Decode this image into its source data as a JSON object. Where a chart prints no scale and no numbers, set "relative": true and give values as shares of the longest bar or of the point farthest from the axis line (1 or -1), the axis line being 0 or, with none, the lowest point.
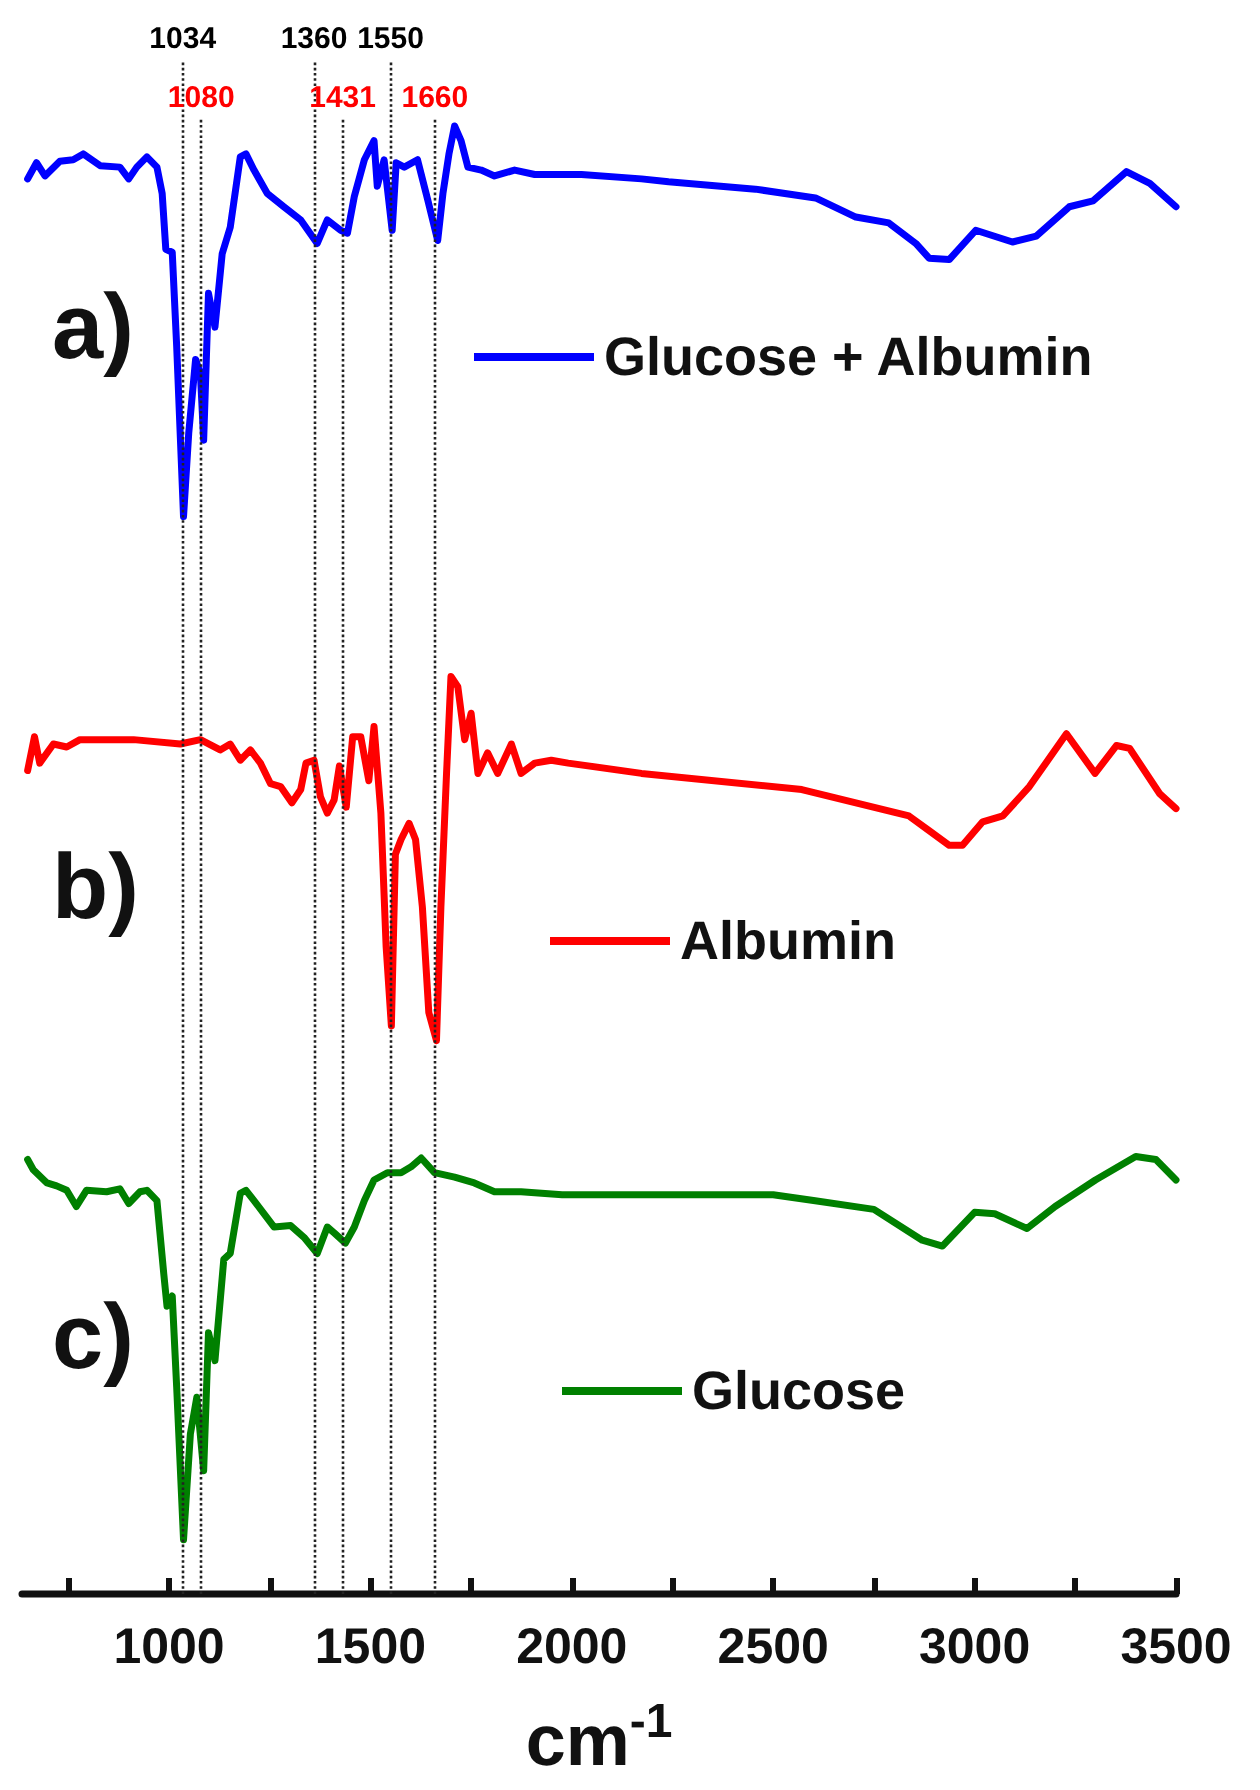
{
  "chart_data": {
    "type": "line",
    "relative": true,
    "xlabel": "cm$^{-1}$",
    "xlim": [
      635,
      3500
    ],
    "xticks": [
      {
        "value": 750,
        "label": null
      },
      1000,
      {
        "value": 1250,
        "label": null
      },
      1500,
      {
        "value": 1750,
        "label": null
      },
      2000,
      {
        "value": 2250,
        "label": null
      },
      2500,
      {
        "value": 2750,
        "label": null
      },
      3000,
      {
        "value": 3250,
        "label": null
      },
      3500
    ],
    "grid": false,
    "legend": "right",
    "marker": "none",
    "line_style": "solid",
    "annotations": [
      "a)",
      "b)",
      "c)"
    ],
    "ref_lines": [
      {
        "axis": "x",
        "value": 1034,
        "label": "1034",
        "color": "#222222",
        "line_style": "dotted"
      },
      {
        "axis": "x",
        "value": 1080,
        "label": "1080",
        "color": "#222222",
        "line_style": "dotted"
      },
      {
        "axis": "x",
        "value": 1360,
        "label": "1360",
        "color": "#222222",
        "line_style": "dotted"
      },
      {
        "axis": "x",
        "value": 1431,
        "label": "1431",
        "color": "#222222",
        "line_style": "dotted"
      },
      {
        "axis": "x",
        "value": 1550,
        "label": "1550",
        "color": "#222222",
        "line_style": "dotted"
      },
      {
        "axis": "x",
        "value": 1660,
        "label": "1660",
        "color": "#222222",
        "line_style": "dotted"
      }
    ],
    "series": [
      {
        "name": "Glucose + Albumin",
        "color": "#0000ff",
        "x": [
          649,
          671,
          692,
          729,
          762,
          787,
          829,
          878,
          900,
          920,
          945,
          970,
          983,
          992,
          1008,
          1019,
          1036,
          1049,
          1066,
          1078,
          1086,
          1098,
          1114,
          1132,
          1152,
          1177,
          1191,
          1211,
          1244,
          1285,
          1327,
          1368,
          1393,
          1426,
          1443,
          1460,
          1485,
          1509,
          1517,
          1534,
          1554,
          1564,
          1584,
          1617,
          1642,
          1667,
          1680,
          1695,
          1709,
          1725,
          1742,
          1775,
          1808,
          1858,
          1908,
          1958,
          2024,
          2173,
          2240,
          2456,
          2605,
          2705,
          2787,
          2854,
          2887,
          2937,
          3003,
          3094,
          3153,
          3235,
          3294,
          3377,
          3435,
          3500
        ],
        "values": [
          0.964,
          0.975,
          0.966,
          0.976,
          0.977,
          0.981,
          0.973,
          0.972,
          0.964,
          0.972,
          0.979,
          0.972,
          0.954,
          0.916,
          0.914,
          0.85,
          0.734,
          0.791,
          0.841,
          0.831,
          0.786,
          0.886,
          0.863,
          0.913,
          0.931,
          0.979,
          0.981,
          0.97,
          0.954,
          0.945,
          0.936,
          0.92,
          0.936,
          0.929,
          0.927,
          0.952,
          0.977,
          0.99,
          0.959,
          0.977,
          0.929,
          0.975,
          0.972,
          0.977,
          0.95,
          0.922,
          0.954,
          0.981,
          1.0,
          0.99,
          0.972,
          0.97,
          0.966,
          0.97,
          0.967,
          0.967,
          0.967,
          0.964,
          0.962,
          0.957,
          0.951,
          0.938,
          0.934,
          0.92,
          0.91,
          0.909,
          0.929,
          0.921,
          0.925,
          0.945,
          0.949,
          0.969,
          0.961,
          0.945
        ]
      },
      {
        "name": "Albumin",
        "color": "#ff0000",
        "x": [
          649,
          666,
          679,
          713,
          746,
          779,
          912,
          1028,
          1078,
          1127,
          1152,
          1177,
          1202,
          1227,
          1252,
          1277,
          1305,
          1327,
          1340,
          1360,
          1376,
          1393,
          1410,
          1423,
          1440,
          1456,
          1476,
          1496,
          1509,
          1526,
          1539,
          1552,
          1562,
          1576,
          1596,
          1612,
          1629,
          1645,
          1664,
          1675,
          1689,
          1700,
          1717,
          1734,
          1750,
          1767,
          1791,
          1816,
          1850,
          1874,
          1908,
          1949,
          1991,
          2173,
          2571,
          2837,
          2887,
          2937,
          2970,
          3020,
          3070,
          3136,
          3228,
          3299,
          3352,
          3385,
          3460,
          3500
        ],
        "values": [
          0.561,
          0.584,
          0.566,
          0.579,
          0.577,
          0.582,
          0.582,
          0.579,
          0.582,
          0.575,
          0.579,
          0.568,
          0.575,
          0.566,
          0.552,
          0.55,
          0.539,
          0.548,
          0.566,
          0.568,
          0.543,
          0.532,
          0.541,
          0.564,
          0.536,
          0.584,
          0.584,
          0.554,
          0.591,
          0.532,
          0.441,
          0.387,
          0.504,
          0.514,
          0.525,
          0.514,
          0.468,
          0.396,
          0.377,
          0.468,
          0.559,
          0.625,
          0.618,
          0.582,
          0.6,
          0.559,
          0.573,
          0.559,
          0.579,
          0.559,
          0.566,
          0.568,
          0.566,
          0.559,
          0.548,
          0.53,
          0.52,
          0.51,
          0.51,
          0.526,
          0.53,
          0.55,
          0.586,
          0.559,
          0.578,
          0.576,
          0.545,
          0.535
        ]
      },
      {
        "name": "Glucose",
        "color": "#008000",
        "x": [
          649,
          663,
          697,
          721,
          746,
          770,
          795,
          845,
          878,
          900,
          928,
          945,
          970,
          987,
          995,
          1008,
          1019,
          1036,
          1053,
          1069,
          1086,
          1098,
          1114,
          1136,
          1152,
          1177,
          1191,
          1211,
          1236,
          1261,
          1302,
          1335,
          1368,
          1393,
          1410,
          1438,
          1460,
          1485,
          1509,
          1542,
          1576,
          1601,
          1626,
          1659,
          1709,
          1758,
          1808,
          1874,
          1976,
          2173,
          2500,
          2600,
          2750,
          2870,
          2920,
          3000,
          3050,
          3130,
          3200,
          3300,
          3400,
          3450,
          3500
        ],
        "values": [
          0.296,
          0.289,
          0.28,
          0.278,
          0.275,
          0.264,
          0.275,
          0.274,
          0.276,
          0.266,
          0.274,
          0.275,
          0.268,
          0.218,
          0.196,
          0.203,
          0.141,
          0.037,
          0.109,
          0.134,
          0.084,
          0.178,
          0.159,
          0.228,
          0.232,
          0.273,
          0.275,
          0.268,
          0.259,
          0.25,
          0.251,
          0.243,
          0.232,
          0.25,
          0.246,
          0.239,
          0.25,
          0.268,
          0.282,
          0.287,
          0.287,
          0.291,
          0.297,
          0.287,
          0.284,
          0.28,
          0.274,
          0.274,
          0.272,
          0.272,
          0.272,
          0.268,
          0.262,
          0.241,
          0.237,
          0.26,
          0.259,
          0.249,
          0.264,
          0.282,
          0.298,
          0.296,
          0.282
        ]
      }
    ]
  }
}
